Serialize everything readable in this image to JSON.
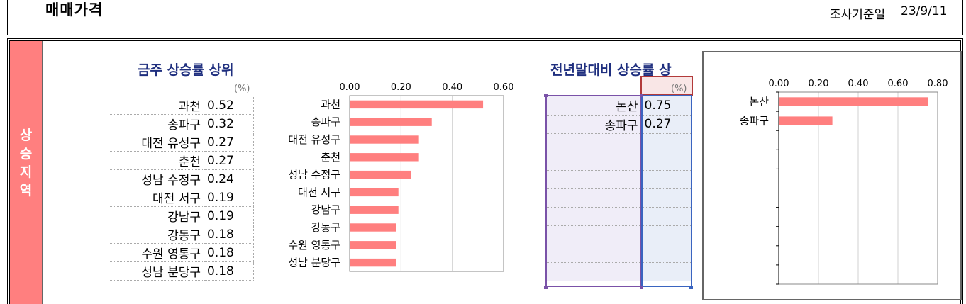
{
  "header": {
    "title": "매매가격",
    "survey_date_label": "조사기준일",
    "survey_date_value": "23/9/11"
  },
  "side_label": "상승지역",
  "weekly": {
    "title": "금주 상승률 상위",
    "unit": "(%)",
    "rows": [
      {
        "name": "과천",
        "value": "0.52"
      },
      {
        "name": "송파구",
        "value": "0.32"
      },
      {
        "name": "대전 유성구",
        "value": "0.27"
      },
      {
        "name": "춘천",
        "value": "0.27"
      },
      {
        "name": "성남 수정구",
        "value": "0.24"
      },
      {
        "name": "대전 서구",
        "value": "0.19"
      },
      {
        "name": "강남구",
        "value": "0.19"
      },
      {
        "name": "강동구",
        "value": "0.18"
      },
      {
        "name": "수원 영통구",
        "value": "0.18"
      },
      {
        "name": "성남 분당구",
        "value": "0.18"
      }
    ]
  },
  "annual": {
    "title": "전년말대비 상승률 상",
    "unit": "(%)",
    "rows": [
      {
        "name": "논산",
        "value": "0.75"
      },
      {
        "name": "송파구",
        "value": "0.27"
      }
    ]
  },
  "colors": {
    "bar": "#ff7f7f",
    "side_bar": "#ff7f7f",
    "title": "#1f2f7f"
  },
  "chart_data": [
    {
      "type": "bar",
      "orientation": "horizontal",
      "categories": [
        "과천",
        "송파구",
        "대전 유성구",
        "춘천",
        "성남 수정구",
        "대전 서구",
        "강남구",
        "강동구",
        "수원 영통구",
        "성남 분당구"
      ],
      "values": [
        0.52,
        0.32,
        0.27,
        0.27,
        0.24,
        0.19,
        0.19,
        0.18,
        0.18,
        0.18
      ],
      "xlim": [
        0,
        0.6
      ],
      "xticks": [
        "0.00",
        "0.20",
        "0.40",
        "0.60"
      ],
      "grid": true,
      "xaxis_position": "top"
    },
    {
      "type": "bar",
      "orientation": "horizontal",
      "categories": [
        "논산",
        "송파구"
      ],
      "values": [
        0.75,
        0.27
      ],
      "xlim": [
        0,
        0.8
      ],
      "xticks": [
        "0.00",
        "0.20",
        "0.40",
        "0.60",
        "0.80"
      ],
      "grid": true,
      "xaxis_position": "top"
    }
  ]
}
